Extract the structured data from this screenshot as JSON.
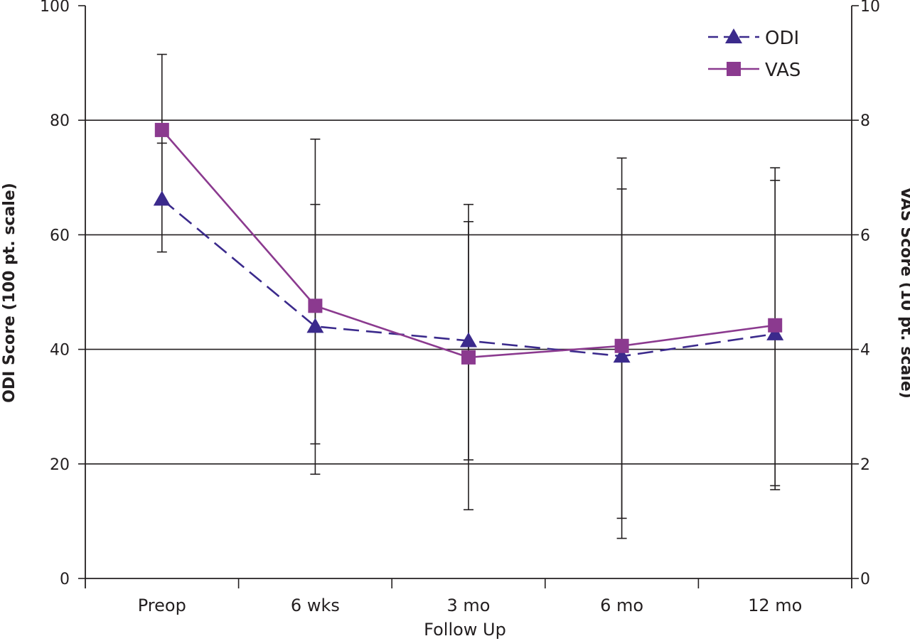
{
  "chart_data": {
    "type": "line",
    "categories": [
      "Preop",
      "6 wks",
      "3 mo",
      "6 mo",
      "12 mo"
    ],
    "xlabel": "Follow Up",
    "ylabel_left": "ODI Score (100 pt. scale)",
    "ylabel_right": "VAS Score (10 pt. scale)",
    "ylim_left": [
      0,
      100
    ],
    "ylim_right": [
      0,
      10
    ],
    "yticks_left": [
      "0",
      "20",
      "40",
      "60",
      "80",
      "100"
    ],
    "yticks_right": [
      "0",
      "2",
      "4",
      "6",
      "8",
      "10"
    ],
    "grid": true,
    "legend_position": "top-right",
    "series": [
      {
        "name": "ODI",
        "axis": "left",
        "color": "#3b2a8c",
        "line_style": "dashed",
        "marker": "triangle",
        "values": [
          66.2,
          44.0,
          41.5,
          38.8,
          42.7
        ],
        "error_low": [
          57.0,
          18.2,
          12.0,
          7.0,
          15.5
        ],
        "error_high": [
          91.5,
          65.3,
          65.3,
          68.0,
          69.5
        ]
      },
      {
        "name": "VAS",
        "axis": "right",
        "color": "#8b3a8f",
        "line_style": "solid",
        "marker": "square",
        "values": [
          7.83,
          4.76,
          3.86,
          4.06,
          4.42
        ],
        "error_low": [
          6.6,
          2.35,
          2.07,
          1.05,
          1.62
        ],
        "error_high": [
          7.6,
          7.67,
          6.23,
          7.34,
          7.17
        ]
      }
    ]
  }
}
